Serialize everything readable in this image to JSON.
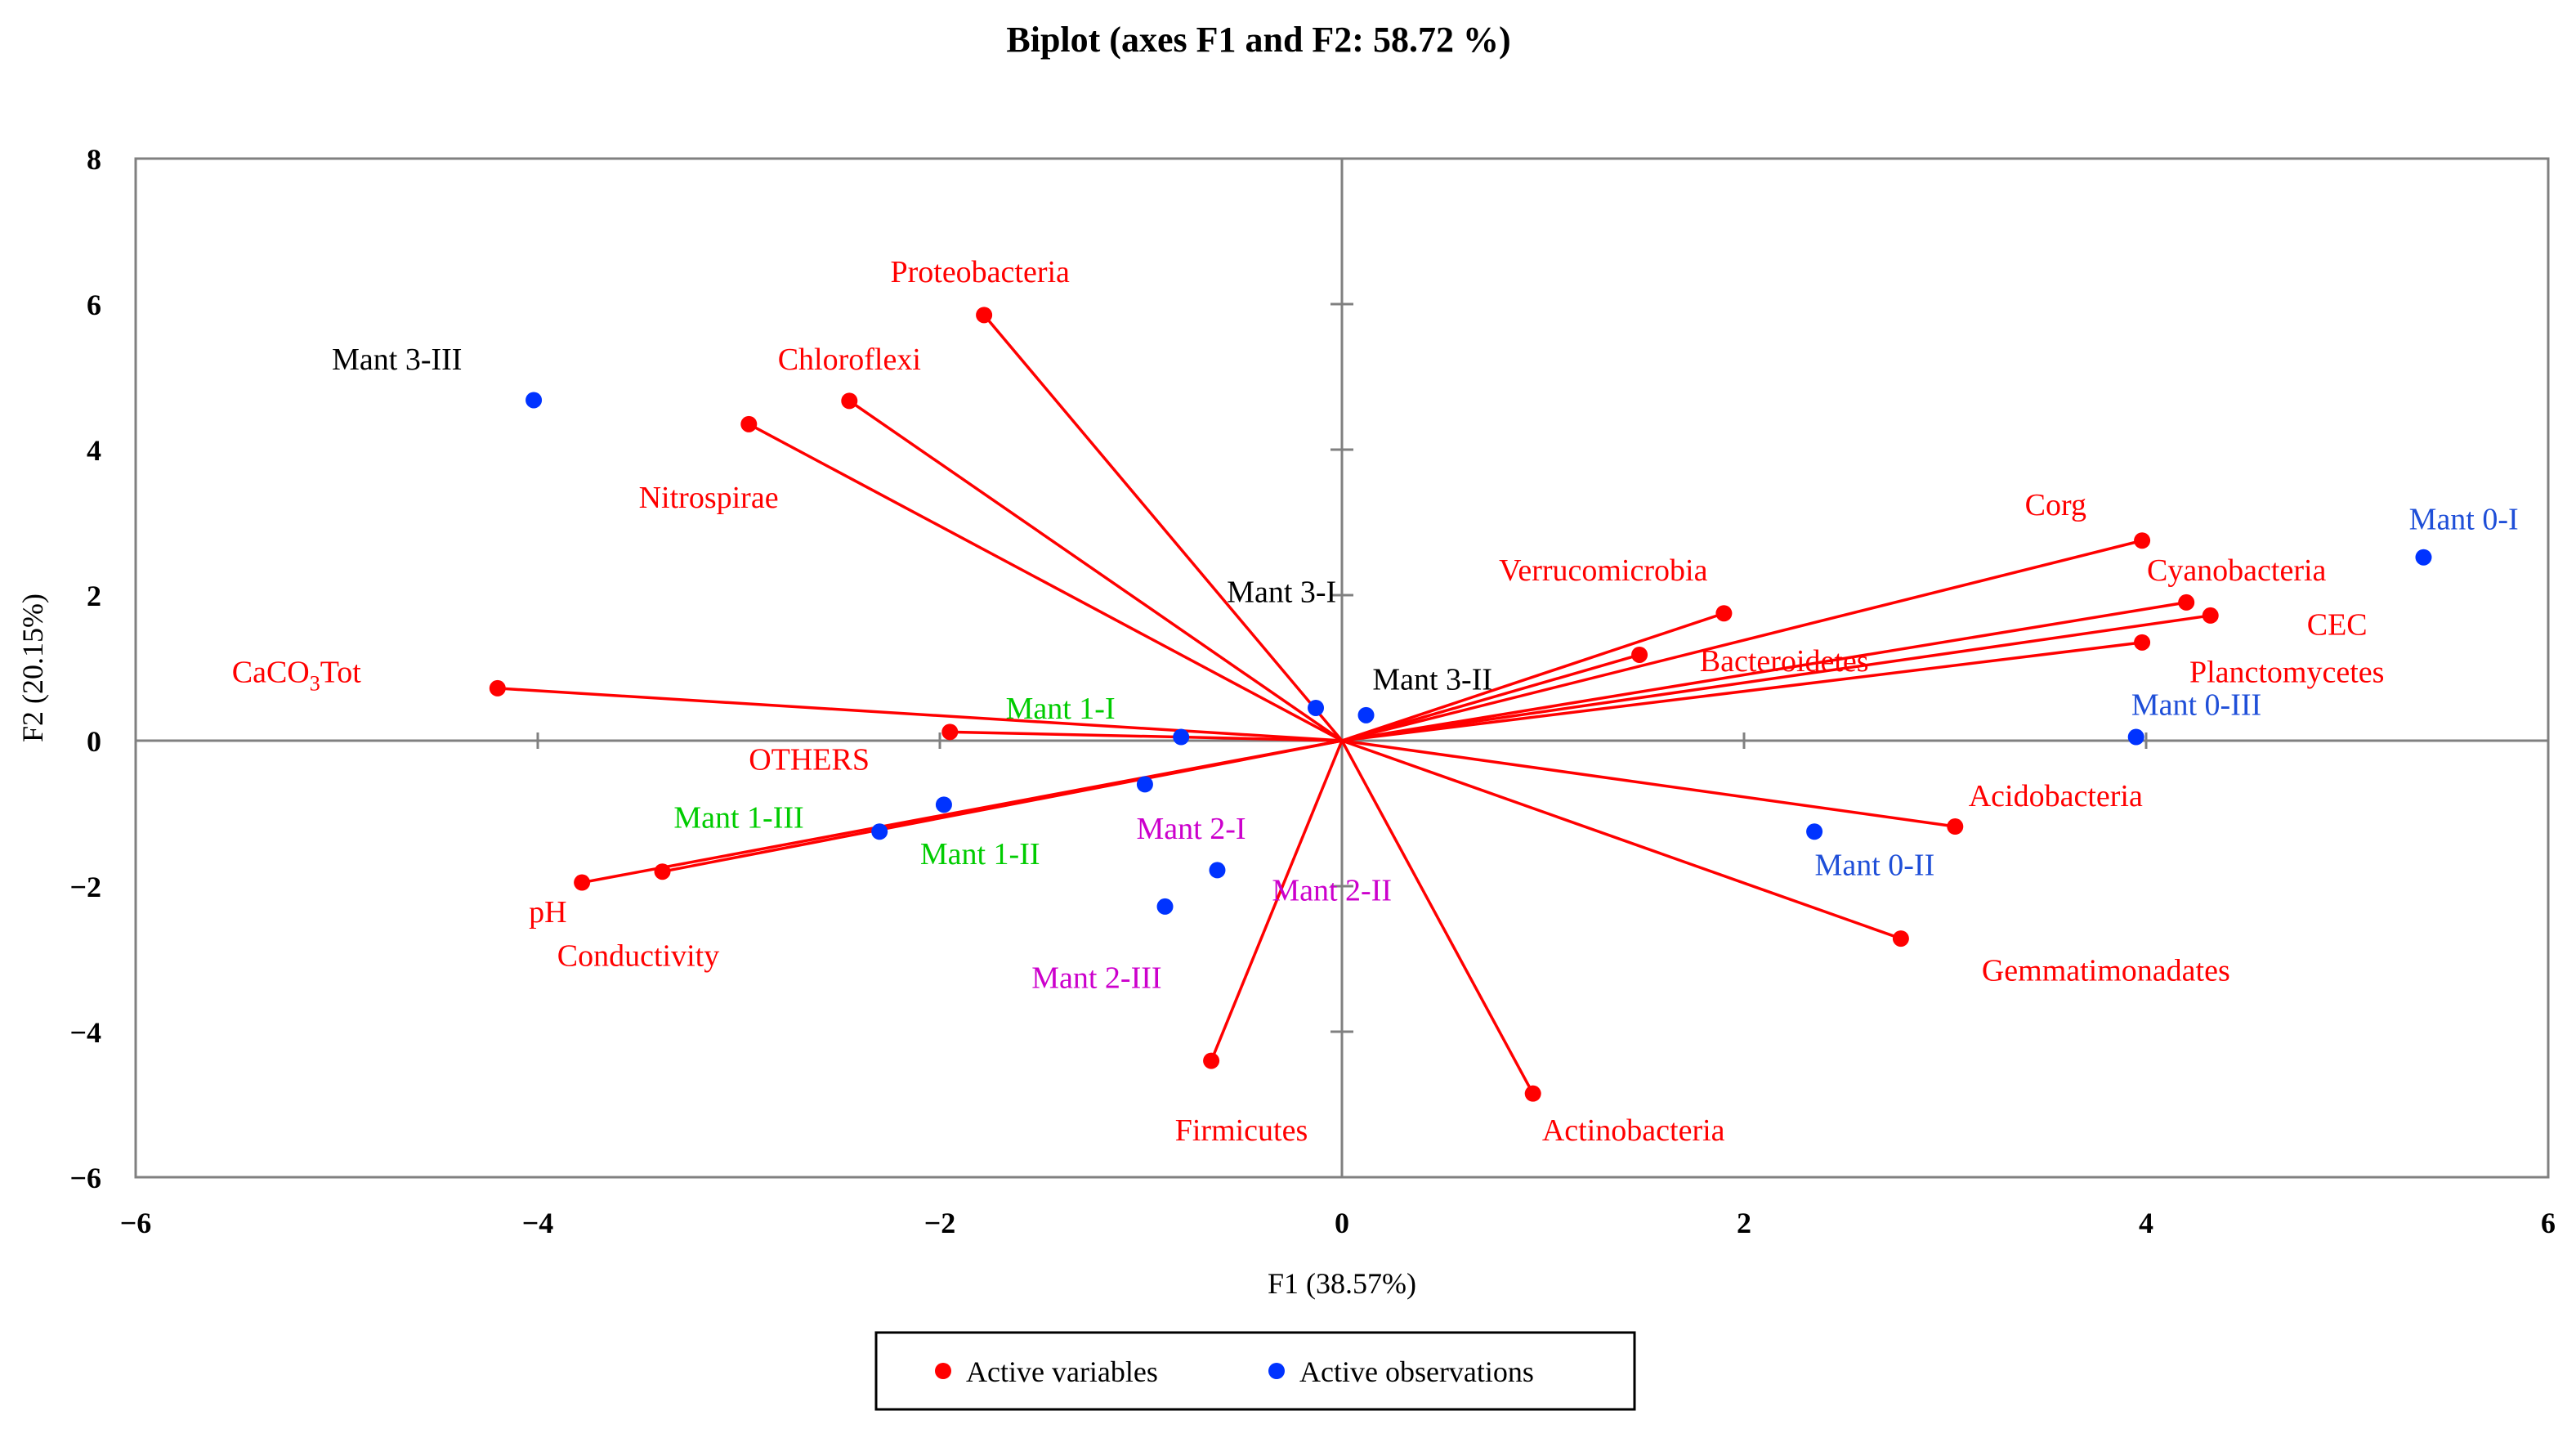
{
  "chart_data": {
    "type": "scatter",
    "subtype": "biplot",
    "title": "Biplot (axes F1 and F2: 58.72 %)",
    "xlabel": "F1 (38.57%)",
    "ylabel": "F2 (20.15%)",
    "xlim": [
      -6,
      6
    ],
    "ylim": [
      -6,
      8
    ],
    "x_ticks": [
      -6,
      -4,
      -2,
      0,
      2,
      4,
      6
    ],
    "y_ticks": [
      -6,
      -4,
      -2,
      0,
      2,
      4,
      6,
      8
    ],
    "x_tick_labels": [
      "−6",
      "−4",
      "−2",
      "0",
      "2",
      "4",
      "6"
    ],
    "y_tick_labels": [
      "−6",
      "−4",
      "−2",
      "0",
      "2",
      "4",
      "6",
      "8"
    ],
    "grid": false,
    "legend": {
      "position": "bottom",
      "entries": [
        {
          "name": "Active variables",
          "color": "#ff0000"
        },
        {
          "name": "Active observations",
          "color": "#0033ff"
        }
      ]
    },
    "variables": [
      {
        "name": "Proteobacteria",
        "x": -1.78,
        "y": 5.85,
        "lx": -1.8,
        "ly": 6.45,
        "anchor": "middle"
      },
      {
        "name": "Chloroflexi",
        "x": -2.45,
        "y": 4.67,
        "lx": -2.45,
        "ly": 5.25,
        "anchor": "middle"
      },
      {
        "name": "Nitrospirae",
        "x": -2.95,
        "y": 4.35,
        "lx": -3.15,
        "ly": 3.35,
        "anchor": "middle"
      },
      {
        "name": "CaCO3Tot",
        "x": -4.2,
        "y": 0.72,
        "lx": -5.2,
        "ly": 0.95,
        "anchor": "middle"
      },
      {
        "name": "OTHERS",
        "x": -1.95,
        "y": 0.12,
        "lx": -2.65,
        "ly": -0.25,
        "anchor": "middle"
      },
      {
        "name": "pH",
        "x": -3.78,
        "y": -1.95,
        "lx": -3.95,
        "ly": -2.35,
        "anchor": "middle"
      },
      {
        "name": "Conductivity",
        "x": -3.38,
        "y": -1.8,
        "lx": -3.5,
        "ly": -2.95,
        "anchor": "middle"
      },
      {
        "name": "Firmicutes",
        "x": -0.65,
        "y": -4.4,
        "lx": -0.5,
        "ly": -5.35,
        "anchor": "middle"
      },
      {
        "name": "Actinobacteria",
        "x": 0.95,
        "y": -4.85,
        "lx": 1.45,
        "ly": -5.35,
        "anchor": "middle"
      },
      {
        "name": "Verrucomicrobia",
        "x": 1.9,
        "y": 1.75,
        "lx": 1.3,
        "ly": 2.35,
        "anchor": "middle"
      },
      {
        "name": "Bacteroidetes",
        "x": 1.48,
        "y": 1.18,
        "lx": 2.2,
        "ly": 1.1,
        "anchor": "middle"
      },
      {
        "name": "Corg",
        "x": 3.98,
        "y": 2.75,
        "lx": 3.55,
        "ly": 3.25,
        "anchor": "middle"
      },
      {
        "name": "Cyanobacteria",
        "x": 4.2,
        "y": 1.9,
        "lx": 4.45,
        "ly": 2.35,
        "anchor": "middle"
      },
      {
        "name": "CEC",
        "x": 4.32,
        "y": 1.72,
        "lx": 4.95,
        "ly": 1.6,
        "anchor": "middle"
      },
      {
        "name": "Planctomycetes",
        "x": 3.98,
        "y": 1.35,
        "lx": 4.7,
        "ly": 0.95,
        "anchor": "middle"
      },
      {
        "name": "Acidobacteria",
        "x": 3.05,
        "y": -1.18,
        "lx": 3.55,
        "ly": -0.75,
        "anchor": "middle"
      },
      {
        "name": "Gemmatimonadates",
        "x": 2.78,
        "y": -2.72,
        "lx": 3.8,
        "ly": -3.15,
        "anchor": "middle"
      }
    ],
    "observations": [
      {
        "name": "Mant 3-III",
        "x": -4.02,
        "y": 4.68,
        "lx": -4.7,
        "ly": 5.25,
        "anchor": "middle",
        "label_color": "#000000"
      },
      {
        "name": "Mant 3-I",
        "x": -0.13,
        "y": 0.45,
        "lx": -0.3,
        "ly": 2.05,
        "anchor": "middle",
        "label_color": "#000000"
      },
      {
        "name": "Mant 3-II",
        "x": 0.12,
        "y": 0.35,
        "lx": 0.45,
        "ly": 0.85,
        "anchor": "middle",
        "label_color": "#000000"
      },
      {
        "name": "Mant 1-I",
        "x": -0.8,
        "y": 0.05,
        "lx": -1.4,
        "ly": 0.45,
        "anchor": "middle",
        "label_color": "#00cc00"
      },
      {
        "name": "Mant 1-III",
        "x": -2.3,
        "y": -1.25,
        "lx": -3.0,
        "ly": -1.05,
        "anchor": "middle",
        "label_color": "#00cc00"
      },
      {
        "name": "Mant 1-II",
        "x": -1.98,
        "y": -0.88,
        "lx": -1.8,
        "ly": -1.55,
        "anchor": "middle",
        "label_color": "#00cc00"
      },
      {
        "name": "Mant 2-I",
        "x": -0.98,
        "y": -0.6,
        "lx": -0.75,
        "ly": -1.2,
        "anchor": "middle",
        "label_color": "#cc00cc"
      },
      {
        "name": "Mant 2-II",
        "x": -0.62,
        "y": -1.78,
        "lx": -0.05,
        "ly": -2.05,
        "anchor": "middle",
        "label_color": "#cc00cc"
      },
      {
        "name": "Mant 2-III",
        "x": -0.88,
        "y": -2.28,
        "lx": -1.22,
        "ly": -3.25,
        "anchor": "middle",
        "label_color": "#cc00cc"
      },
      {
        "name": "Mant 0-I",
        "x": 5.38,
        "y": 2.52,
        "lx": 5.58,
        "ly": 3.05,
        "anchor": "middle",
        "label_color": "#1f4fd8"
      },
      {
        "name": "Mant 0-III",
        "x": 3.95,
        "y": 0.05,
        "lx": 4.25,
        "ly": 0.5,
        "anchor": "middle",
        "label_color": "#1f4fd8"
      },
      {
        "name": "Mant 0-II",
        "x": 2.35,
        "y": -1.25,
        "lx": 2.65,
        "ly": -1.7,
        "anchor": "middle",
        "label_color": "#1f4fd8"
      }
    ]
  },
  "colors": {
    "variable": "#ff0000",
    "observation": "#0033ff",
    "axis": "#808080",
    "text": "#000000"
  }
}
